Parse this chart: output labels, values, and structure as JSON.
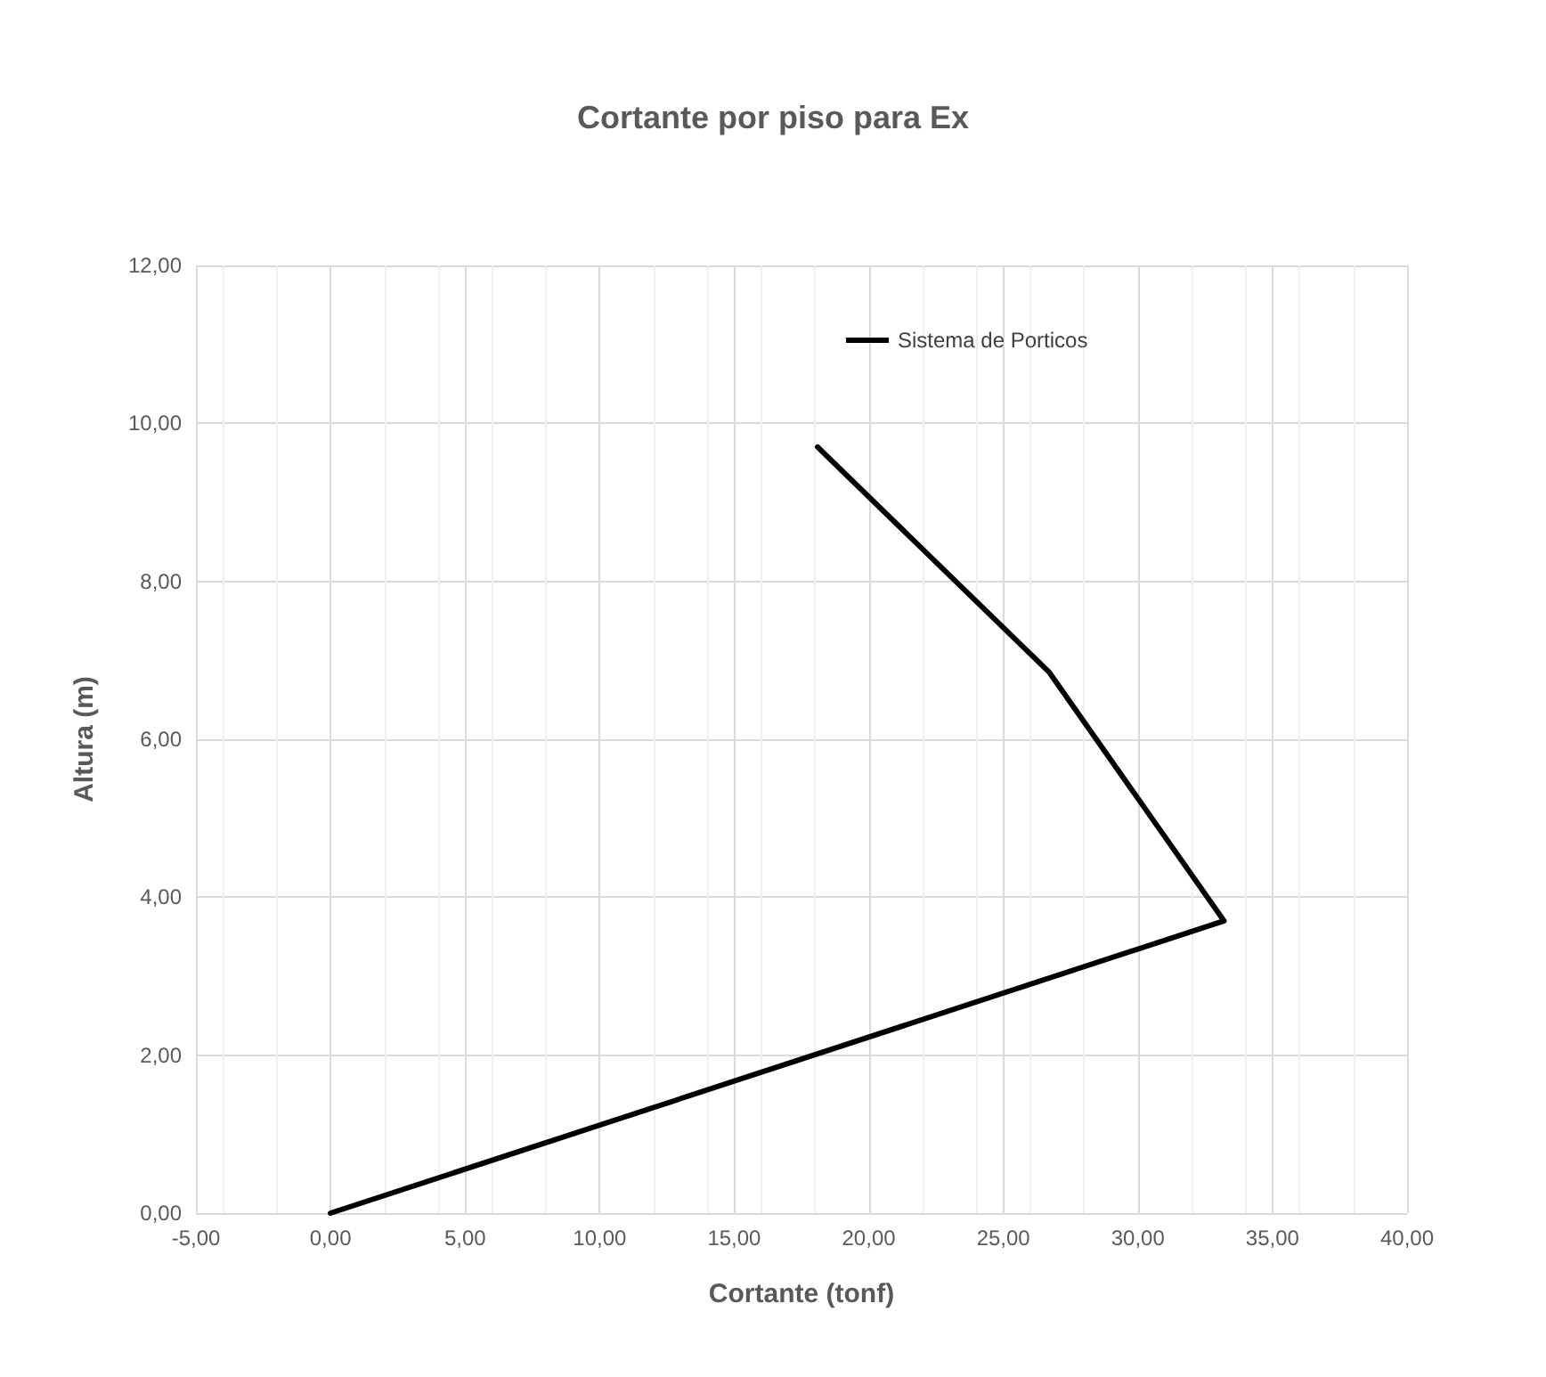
{
  "chart_data": {
    "type": "line",
    "title": "Cortante por piso para Ex",
    "xlabel": "Cortante (tonf)",
    "ylabel": "Altura (m)",
    "x": [
      0,
      33.2,
      26.7,
      18.1
    ],
    "series": [
      {
        "name": "Sistema de Porticos",
        "color": "#000000",
        "values": [
          0,
          3.7,
          6.85,
          9.7
        ]
      }
    ],
    "xlim": [
      -5,
      40
    ],
    "xticks": [
      {
        "value": -5,
        "label": "-5,00"
      },
      {
        "value": 0,
        "label": "0,00"
      },
      {
        "value": 5,
        "label": "5,00"
      },
      {
        "value": 10,
        "label": "10,00"
      },
      {
        "value": 15,
        "label": "15,00"
      },
      {
        "value": 20,
        "label": "20,00"
      },
      {
        "value": 25,
        "label": "25,00"
      },
      {
        "value": 30,
        "label": "30,00"
      },
      {
        "value": 35,
        "label": "35,00"
      },
      {
        "value": 40,
        "label": "40,00"
      }
    ],
    "ylim": [
      0,
      12
    ],
    "yticks": [
      {
        "value": 0,
        "label": "0,00"
      },
      {
        "value": 2,
        "label": "2,00"
      },
      {
        "value": 4,
        "label": "4,00"
      },
      {
        "value": 6,
        "label": "6,00"
      },
      {
        "value": 8,
        "label": "8,00"
      },
      {
        "value": 10,
        "label": "10,00"
      },
      {
        "value": 12,
        "label": "12,00"
      }
    ],
    "grid": true,
    "legend": "top right",
    "marker": "none",
    "line_style": "solid"
  }
}
